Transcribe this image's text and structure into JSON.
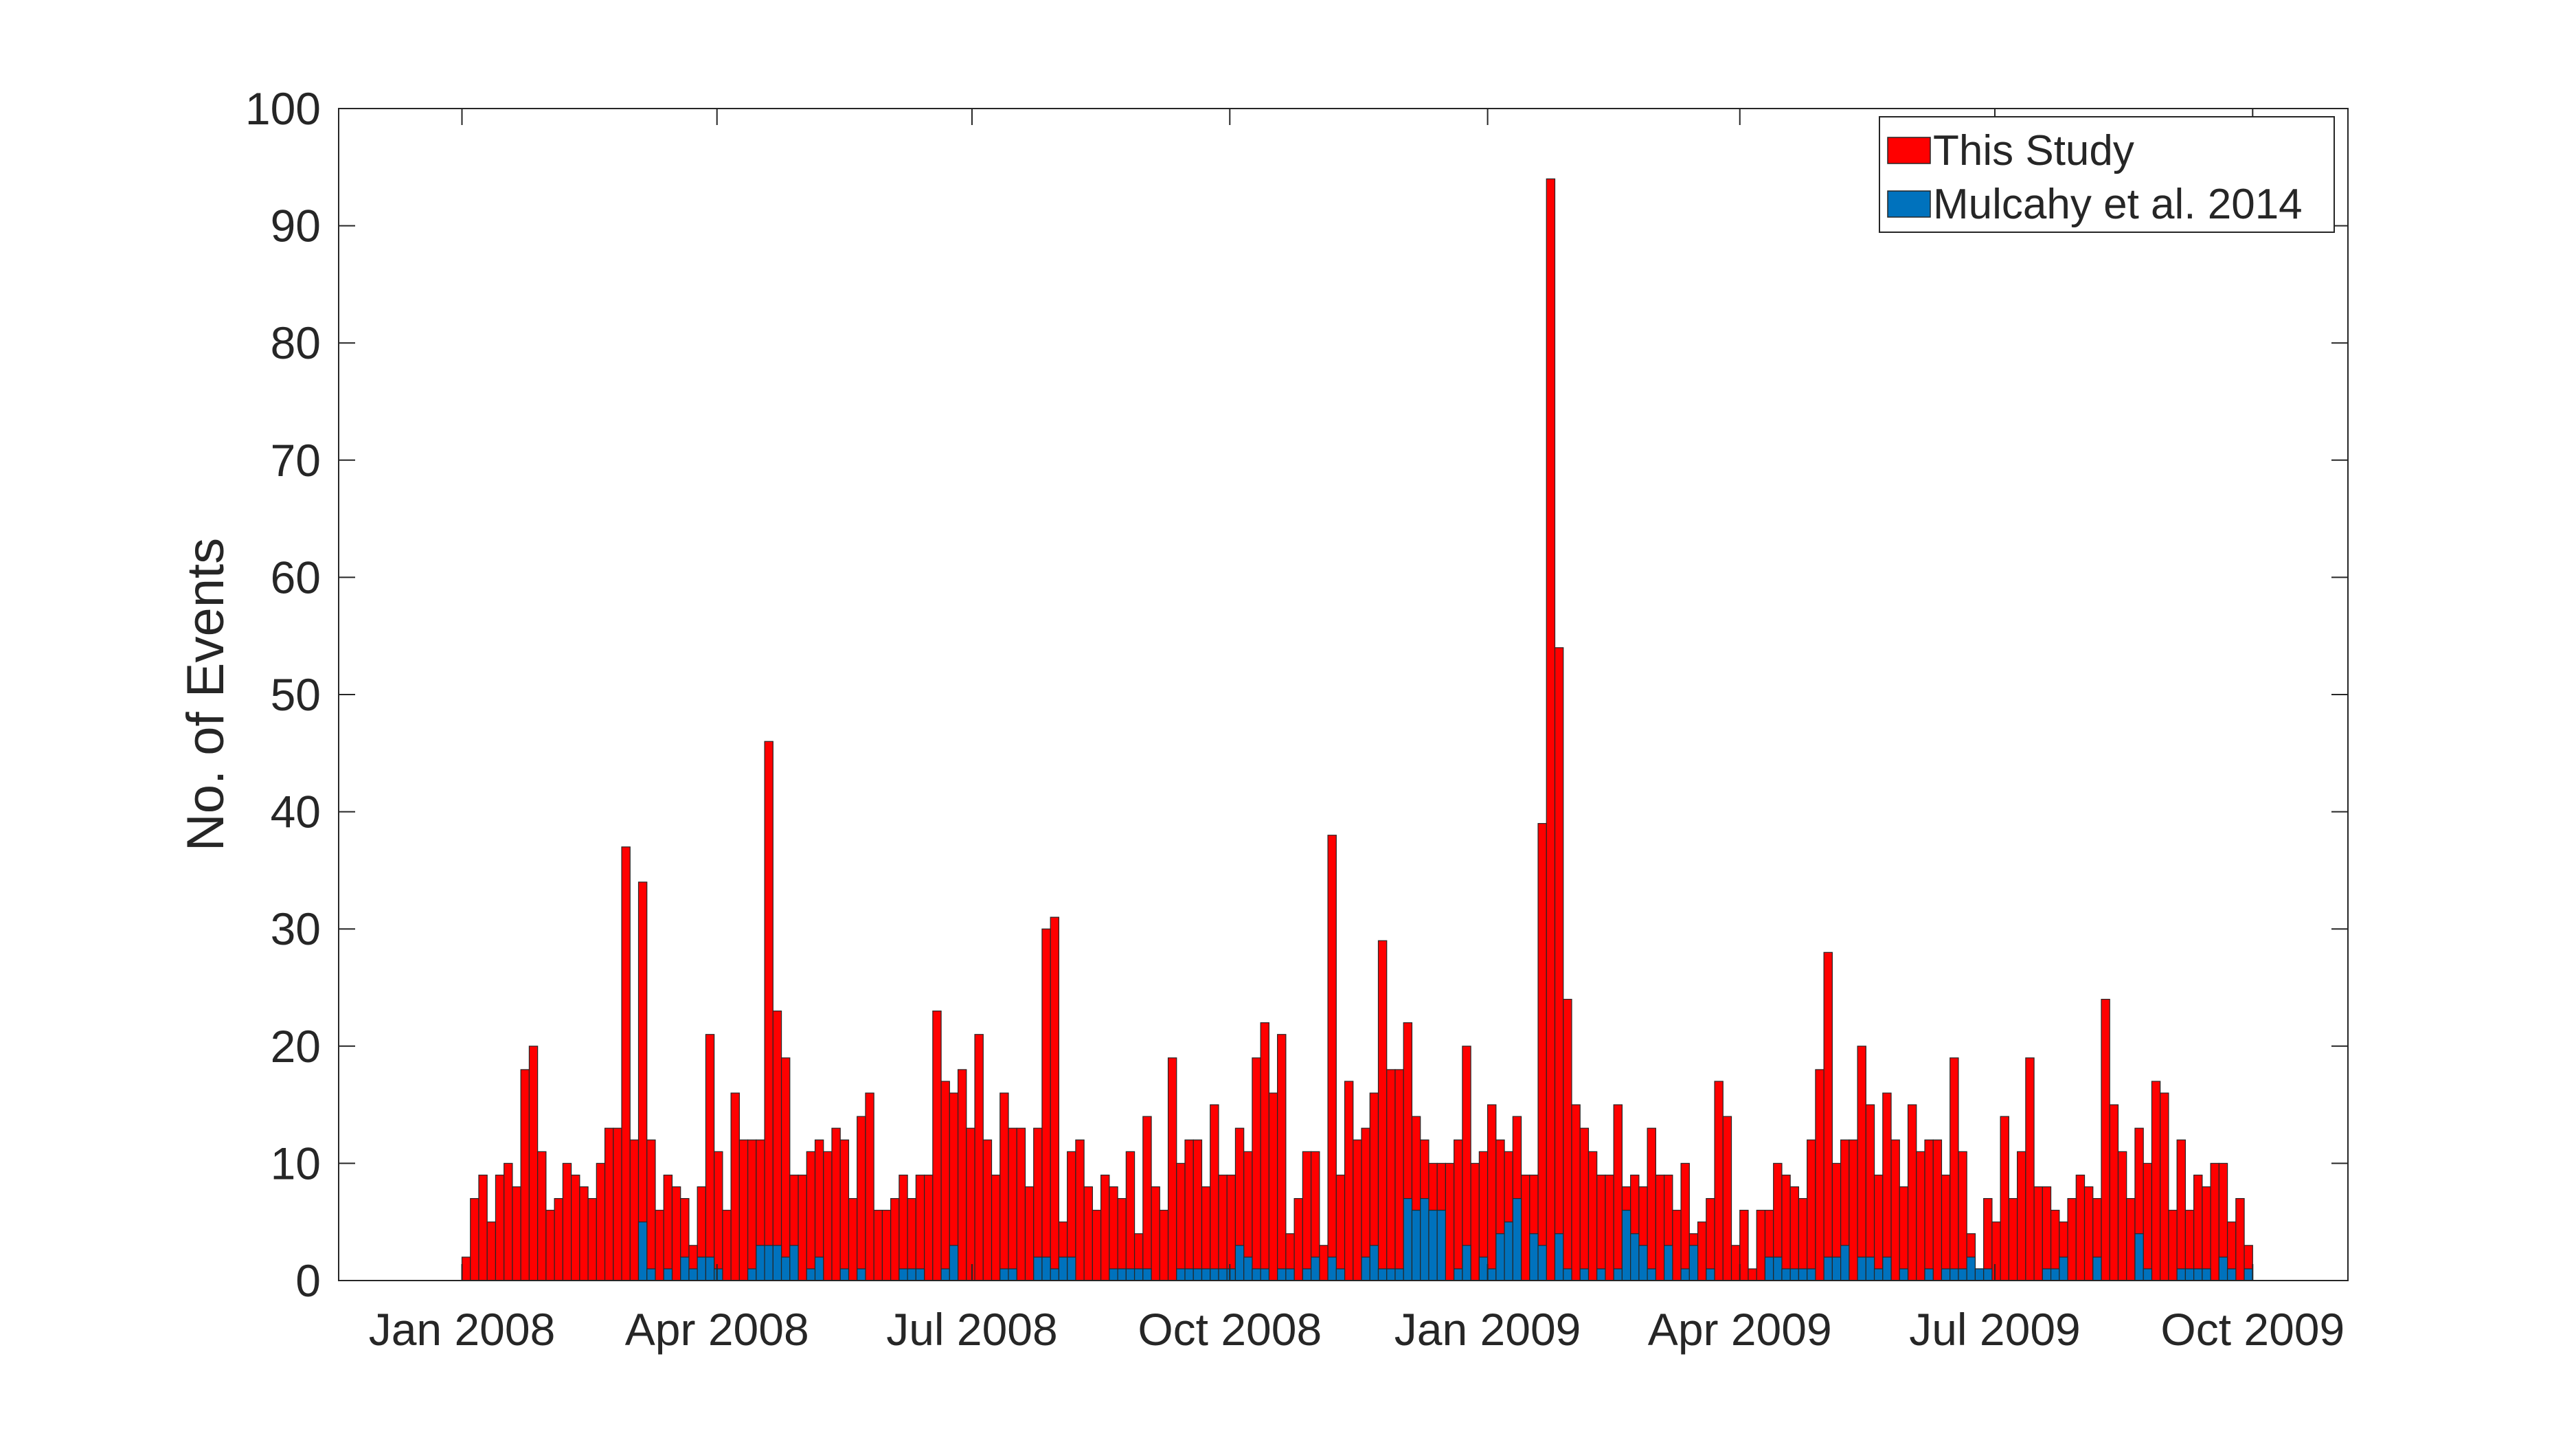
{
  "chart_data": {
    "type": "bar",
    "title": "",
    "xlabel": "",
    "ylabel": "No. of Events",
    "ylim": [
      0,
      100
    ],
    "yticks": [
      "0",
      "10",
      "20",
      "30",
      "40",
      "50",
      "60",
      "70",
      "80",
      "90",
      "100"
    ],
    "xlim": [
      "2007-11-18",
      "2009-11-04"
    ],
    "xticks": [
      {
        "date": "2008-01-01",
        "label": "Jan 2008"
      },
      {
        "date": "2008-04-01",
        "label": "Apr 2008"
      },
      {
        "date": "2008-07-01",
        "label": "Jul 2008"
      },
      {
        "date": "2008-10-01",
        "label": "Oct 2008"
      },
      {
        "date": "2009-01-01",
        "label": "Jan 2009"
      },
      {
        "date": "2009-04-01",
        "label": "Apr 2009"
      },
      {
        "date": "2009-07-01",
        "label": "Jul 2009"
      },
      {
        "date": "2009-10-01",
        "label": "Oct 2009"
      }
    ],
    "bin_days": 3,
    "first_bin_start": "2008-01-01",
    "grid": false,
    "legend_position": "top-right",
    "series": [
      {
        "name": "This Study",
        "color": "#ff0000",
        "values": [
          2,
          7,
          9,
          5,
          9,
          10,
          8,
          18,
          20,
          11,
          6,
          7,
          10,
          9,
          8,
          7,
          10,
          13,
          13,
          37,
          12,
          34,
          12,
          6,
          9,
          8,
          7,
          3,
          8,
          21,
          11,
          6,
          16,
          12,
          12,
          12,
          46,
          23,
          19,
          9,
          9,
          11,
          12,
          11,
          13,
          12,
          7,
          14,
          16,
          6,
          6,
          7,
          9,
          7,
          9,
          9,
          23,
          17,
          16,
          18,
          13,
          21,
          12,
          9,
          16,
          13,
          13,
          8,
          13,
          30,
          31,
          5,
          11,
          12,
          8,
          6,
          9,
          8,
          7,
          11,
          4,
          14,
          8,
          6,
          19,
          10,
          12,
          12,
          8,
          15,
          9,
          9,
          13,
          11,
          19,
          22,
          16,
          21,
          4,
          7,
          11,
          11,
          3,
          38,
          9,
          17,
          12,
          13,
          16,
          29,
          18,
          18,
          22,
          14,
          12,
          10,
          10,
          10,
          12,
          20,
          10,
          11,
          15,
          12,
          11,
          14,
          9,
          9,
          39,
          94,
          54,
          24,
          15,
          13,
          11,
          9,
          9,
          15,
          8,
          9,
          8,
          13,
          9,
          9,
          6,
          10,
          4,
          5,
          7,
          17,
          14,
          3,
          6,
          1,
          6,
          6,
          10,
          9,
          8,
          7,
          12,
          18,
          28,
          10,
          12,
          12,
          20,
          15,
          9,
          16,
          12,
          8,
          15,
          11,
          12,
          12,
          9,
          19,
          11,
          4,
          1,
          7,
          5,
          14,
          7,
          11,
          19,
          8,
          8,
          6,
          5,
          7,
          9,
          8,
          7,
          24,
          15,
          11,
          7,
          13,
          10,
          17,
          16,
          6,
          12,
          6,
          9,
          8,
          10,
          10,
          5,
          7,
          3
        ]
      },
      {
        "name": "Mulcahy et al. 2014",
        "color": "#0072bd",
        "values": [
          0,
          0,
          0,
          0,
          0,
          0,
          0,
          0,
          0,
          0,
          0,
          0,
          0,
          0,
          0,
          0,
          0,
          0,
          0,
          0,
          0,
          5,
          1,
          0,
          1,
          0,
          2,
          1,
          2,
          2,
          1,
          0,
          0,
          0,
          1,
          3,
          3,
          3,
          2,
          3,
          0,
          1,
          2,
          0,
          0,
          1,
          0,
          1,
          0,
          0,
          0,
          0,
          1,
          1,
          1,
          0,
          0,
          1,
          3,
          0,
          0,
          0,
          0,
          0,
          1,
          1,
          0,
          0,
          2,
          2,
          1,
          2,
          2,
          0,
          0,
          0,
          0,
          1,
          1,
          1,
          1,
          1,
          0,
          0,
          0,
          1,
          1,
          1,
          1,
          1,
          1,
          1,
          3,
          2,
          1,
          1,
          0,
          1,
          1,
          0,
          1,
          2,
          0,
          2,
          1,
          0,
          0,
          2,
          3,
          1,
          1,
          1,
          7,
          6,
          7,
          6,
          6,
          0,
          1,
          3,
          0,
          2,
          1,
          4,
          5,
          7,
          0,
          4,
          3,
          0,
          4,
          1,
          0,
          1,
          0,
          1,
          0,
          1,
          6,
          4,
          3,
          1,
          0,
          3,
          0,
          1,
          3,
          0,
          1,
          0,
          0,
          0,
          0,
          0,
          0,
          2,
          2,
          1,
          1,
          1,
          1,
          0,
          2,
          2,
          3,
          0,
          2,
          2,
          1,
          2,
          0,
          1,
          0,
          0,
          1,
          0,
          1,
          1,
          1,
          2,
          1,
          1,
          0,
          0,
          0,
          0,
          0,
          0,
          1,
          1,
          2,
          0,
          0,
          0,
          2,
          0,
          0,
          0,
          0,
          4,
          1,
          0,
          0,
          0,
          1,
          1,
          1,
          1,
          0,
          2,
          1,
          0,
          1,
          0,
          0,
          0,
          0
        ]
      }
    ]
  }
}
